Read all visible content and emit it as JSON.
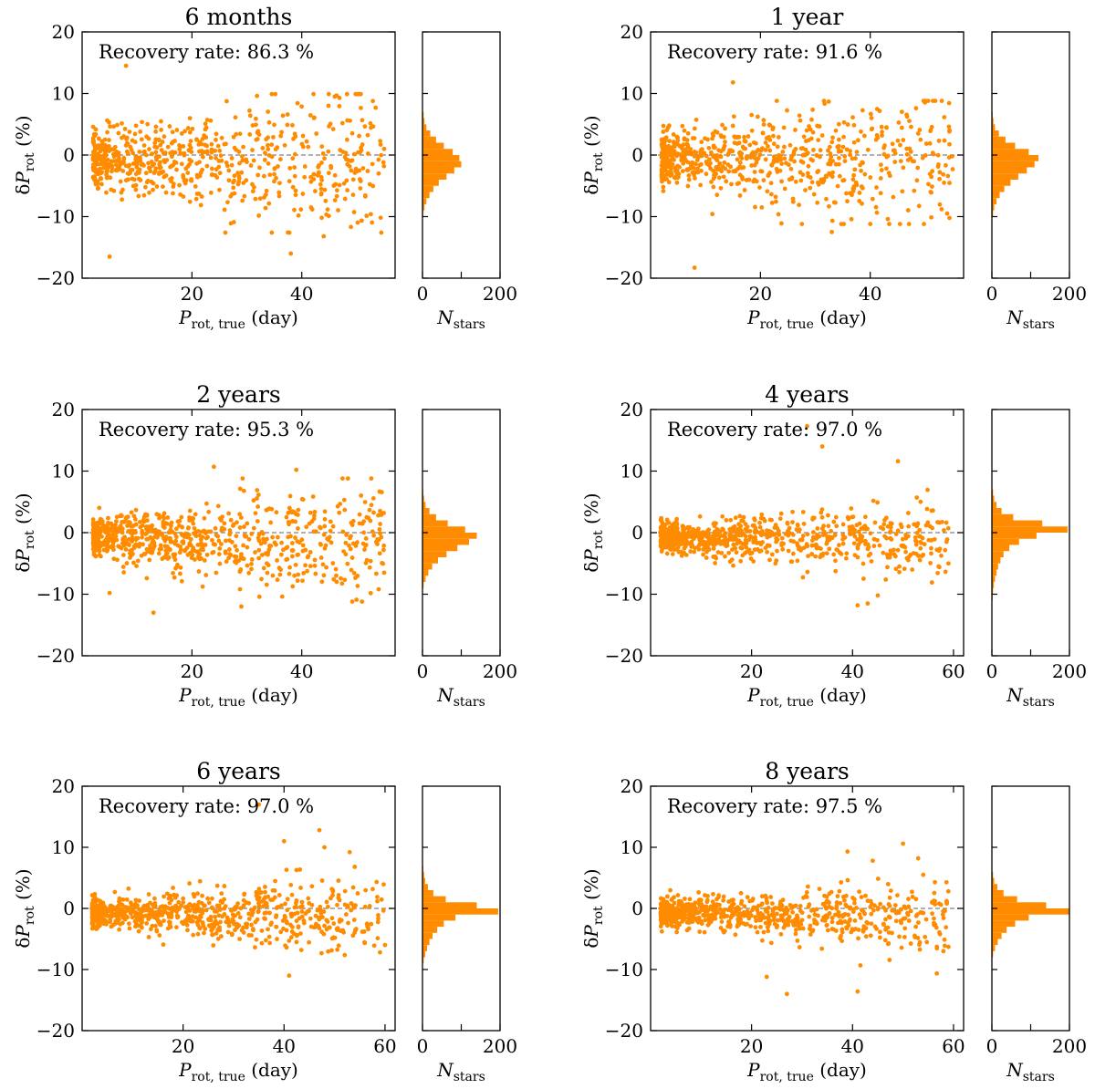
{
  "figure": {
    "marker_color": "#ff8c00",
    "zero_line_color": "#808080",
    "recovery_prefix": "Recovery rate: ",
    "recovery_suffix": " %",
    "ylabel": "δP_rot (%)",
    "xlabel": "P_rot,true (day)",
    "hist_xlabel": "N_stars"
  },
  "chart_data": [
    {
      "type": "scatter",
      "title": "6 months",
      "recovery_rate": "86.3",
      "xlabel": "P_rot,true (day)",
      "ylabel": "δP_rot (%)",
      "xlim": [
        0,
        57
      ],
      "ylim": [
        -20,
        20
      ],
      "xticks": [
        20,
        40
      ],
      "yticks": [
        -20,
        -10,
        0,
        10,
        20
      ],
      "x_range_data": [
        2,
        55
      ],
      "max_x": 55,
      "spread_edge": 9,
      "spread_center": 5,
      "points": 700,
      "seed": 11,
      "outliers": [
        [
          8,
          14.5
        ],
        [
          5,
          -16.5
        ],
        [
          38,
          -16
        ],
        [
          44,
          -13.2
        ],
        [
          46,
          9.5
        ],
        [
          55,
          1
        ],
        [
          49,
          -2.5
        ],
        [
          52,
          -2.6
        ],
        [
          54,
          -3
        ]
      ],
      "hist": {
        "xlabel": "N_stars",
        "xlim": [
          0,
          200
        ],
        "xticks": [
          0,
          200
        ],
        "bin_width": 1,
        "bins": [
          -10,
          -9,
          -8,
          -7,
          -6,
          -5,
          -4,
          -3,
          -2,
          -1,
          0,
          1,
          2,
          3,
          4,
          5,
          6,
          7
        ],
        "counts": [
          2,
          5,
          10,
          18,
          28,
          42,
          62,
          82,
          100,
          95,
          78,
          55,
          35,
          20,
          10,
          5,
          3,
          1
        ]
      }
    },
    {
      "type": "scatter",
      "title": "1 year",
      "recovery_rate": "91.6",
      "xlabel": "P_rot,true (day)",
      "ylabel": "δP_rot (%)",
      "xlim": [
        0,
        57
      ],
      "ylim": [
        -20,
        20
      ],
      "xticks": [
        20,
        40
      ],
      "yticks": [
        -20,
        -10,
        0,
        10,
        20
      ],
      "x_range_data": [
        2,
        55
      ],
      "max_x": 55,
      "spread_edge": 8,
      "spread_center": 4.5,
      "points": 720,
      "seed": 23,
      "outliers": [
        [
          8,
          -18.3
        ],
        [
          15,
          11.8
        ],
        [
          51,
          -6
        ],
        [
          53,
          -8.8
        ],
        [
          54,
          -9.5
        ],
        [
          55,
          -2.3
        ],
        [
          48,
          -5.8
        ],
        [
          40,
          -11.2
        ],
        [
          33,
          -12.5
        ]
      ],
      "hist": {
        "xlabel": "N_stars",
        "xlim": [
          0,
          200
        ],
        "xticks": [
          0,
          200
        ],
        "bin_width": 1,
        "bins": [
          -10,
          -9,
          -8,
          -7,
          -6,
          -5,
          -4,
          -3,
          -2,
          -1,
          0,
          1,
          2,
          3,
          4,
          5,
          6,
          7
        ],
        "counts": [
          3,
          6,
          12,
          20,
          32,
          48,
          68,
          90,
          110,
          120,
          95,
          60,
          35,
          18,
          8,
          4,
          2,
          1
        ]
      }
    },
    {
      "type": "scatter",
      "title": "2 years",
      "recovery_rate": "95.3",
      "xlabel": "P_rot,true (day)",
      "ylabel": "δP_rot (%)",
      "xlim": [
        0,
        57
      ],
      "ylim": [
        -20,
        20
      ],
      "xticks": [
        20,
        40
      ],
      "yticks": [
        -20,
        -10,
        0,
        10,
        20
      ],
      "x_range_data": [
        2,
        55
      ],
      "max_x": 55,
      "spread_edge": 8,
      "spread_center": 3.5,
      "points": 760,
      "seed": 37,
      "outliers": [
        [
          13,
          -13
        ],
        [
          24,
          10.7
        ],
        [
          39,
          10.2
        ],
        [
          5,
          -9.8
        ],
        [
          54,
          -9.2
        ],
        [
          55,
          -6.5
        ],
        [
          29,
          -12
        ]
      ],
      "hist": {
        "xlabel": "N_stars",
        "xlim": [
          0,
          200
        ],
        "xticks": [
          0,
          200
        ],
        "bin_width": 1,
        "bins": [
          -9,
          -8,
          -7,
          -6,
          -5,
          -4,
          -3,
          -2,
          -1,
          0,
          1,
          2,
          3,
          4,
          5,
          6,
          7
        ],
        "counts": [
          3,
          8,
          15,
          25,
          40,
          62,
          90,
          120,
          140,
          110,
          65,
          35,
          18,
          8,
          4,
          2,
          1
        ]
      }
    },
    {
      "type": "scatter",
      "title": "4 years",
      "recovery_rate": "97.0",
      "xlabel": "P_rot,true (day)",
      "ylabel": "δP_rot (%)",
      "xlim": [
        0,
        62
      ],
      "ylim": [
        -20,
        20
      ],
      "xticks": [
        20,
        40,
        60
      ],
      "yticks": [
        -20,
        -10,
        0,
        10,
        20
      ],
      "x_range_data": [
        2,
        59
      ],
      "max_x": 59,
      "spread_edge": 9,
      "spread_center": 2.2,
      "points": 760,
      "seed": 53,
      "outliers": [
        [
          34,
          14
        ],
        [
          31,
          17.3
        ],
        [
          49,
          11.6
        ],
        [
          59,
          -5
        ],
        [
          41,
          -11.8
        ],
        [
          43,
          -11.5
        ],
        [
          45,
          -10.2
        ]
      ],
      "hist": {
        "xlabel": "N_stars",
        "xlim": [
          0,
          200
        ],
        "xticks": [
          0,
          200
        ],
        "bin_width": 1,
        "bins": [
          -12,
          -11,
          -10,
          -9,
          -8,
          -7,
          -6,
          -5,
          -4,
          -3,
          -2,
          -1,
          0,
          1,
          2,
          3,
          4,
          5,
          6,
          7
        ],
        "counts": [
          1,
          2,
          3,
          5,
          8,
          12,
          16,
          22,
          30,
          45,
          70,
          115,
          195,
          130,
          55,
          25,
          12,
          6,
          3,
          1
        ]
      }
    },
    {
      "type": "scatter",
      "title": "6 years",
      "recovery_rate": "97.0",
      "xlabel": "P_rot,true (day)",
      "ylabel": "δP_rot (%)",
      "xlim": [
        0,
        62
      ],
      "ylim": [
        -20,
        20
      ],
      "xticks": [
        20,
        40,
        60
      ],
      "yticks": [
        -20,
        -10,
        0,
        10,
        20
      ],
      "x_range_data": [
        2,
        60
      ],
      "max_x": 60,
      "spread_edge": 9,
      "spread_center": 2.3,
      "points": 760,
      "seed": 71,
      "outliers": [
        [
          35,
          17
        ],
        [
          40,
          11
        ],
        [
          47,
          12.8
        ],
        [
          48,
          10
        ],
        [
          53,
          9.2
        ],
        [
          54,
          6.8
        ],
        [
          41,
          -11
        ],
        [
          60,
          -6
        ],
        [
          59,
          -7.2
        ]
      ],
      "hist": {
        "xlabel": "N_stars",
        "xlim": [
          0,
          200
        ],
        "xticks": [
          0,
          200
        ],
        "bin_width": 1,
        "bins": [
          -9,
          -8,
          -7,
          -6,
          -5,
          -4,
          -3,
          -2,
          -1,
          0,
          1,
          2,
          3,
          4,
          5,
          6,
          7
        ],
        "counts": [
          3,
          7,
          12,
          18,
          26,
          38,
          55,
          85,
          195,
          140,
          60,
          28,
          14,
          7,
          4,
          2,
          1
        ]
      }
    },
    {
      "type": "scatter",
      "title": "8 years",
      "recovery_rate": "97.5",
      "xlabel": "P_rot,true (day)",
      "ylabel": "δP_rot (%)",
      "xlim": [
        0,
        62
      ],
      "ylim": [
        -20,
        20
      ],
      "xticks": [
        20,
        40,
        60
      ],
      "yticks": [
        -20,
        -10,
        0,
        10,
        20
      ],
      "x_range_data": [
        2,
        59
      ],
      "max_x": 59,
      "spread_edge": 9,
      "spread_center": 2,
      "points": 760,
      "seed": 89,
      "outliers": [
        [
          39,
          9.3
        ],
        [
          50,
          10.6
        ],
        [
          44,
          7.8
        ],
        [
          53,
          8.2
        ],
        [
          54,
          5.5
        ],
        [
          27,
          -14
        ],
        [
          41,
          -13.6
        ],
        [
          23,
          -11.2
        ],
        [
          59,
          -6.3
        ],
        [
          58,
          -7
        ]
      ],
      "hist": {
        "xlabel": "N_stars",
        "xlim": [
          0,
          200
        ],
        "xticks": [
          0,
          200
        ],
        "bin_width": 1,
        "bins": [
          -8,
          -7,
          -6,
          -5,
          -4,
          -3,
          -2,
          -1,
          0,
          1,
          2,
          3,
          4,
          5,
          6
        ],
        "counts": [
          3,
          8,
          15,
          25,
          38,
          60,
          95,
          200,
          140,
          65,
          30,
          14,
          6,
          3,
          1
        ]
      }
    }
  ]
}
